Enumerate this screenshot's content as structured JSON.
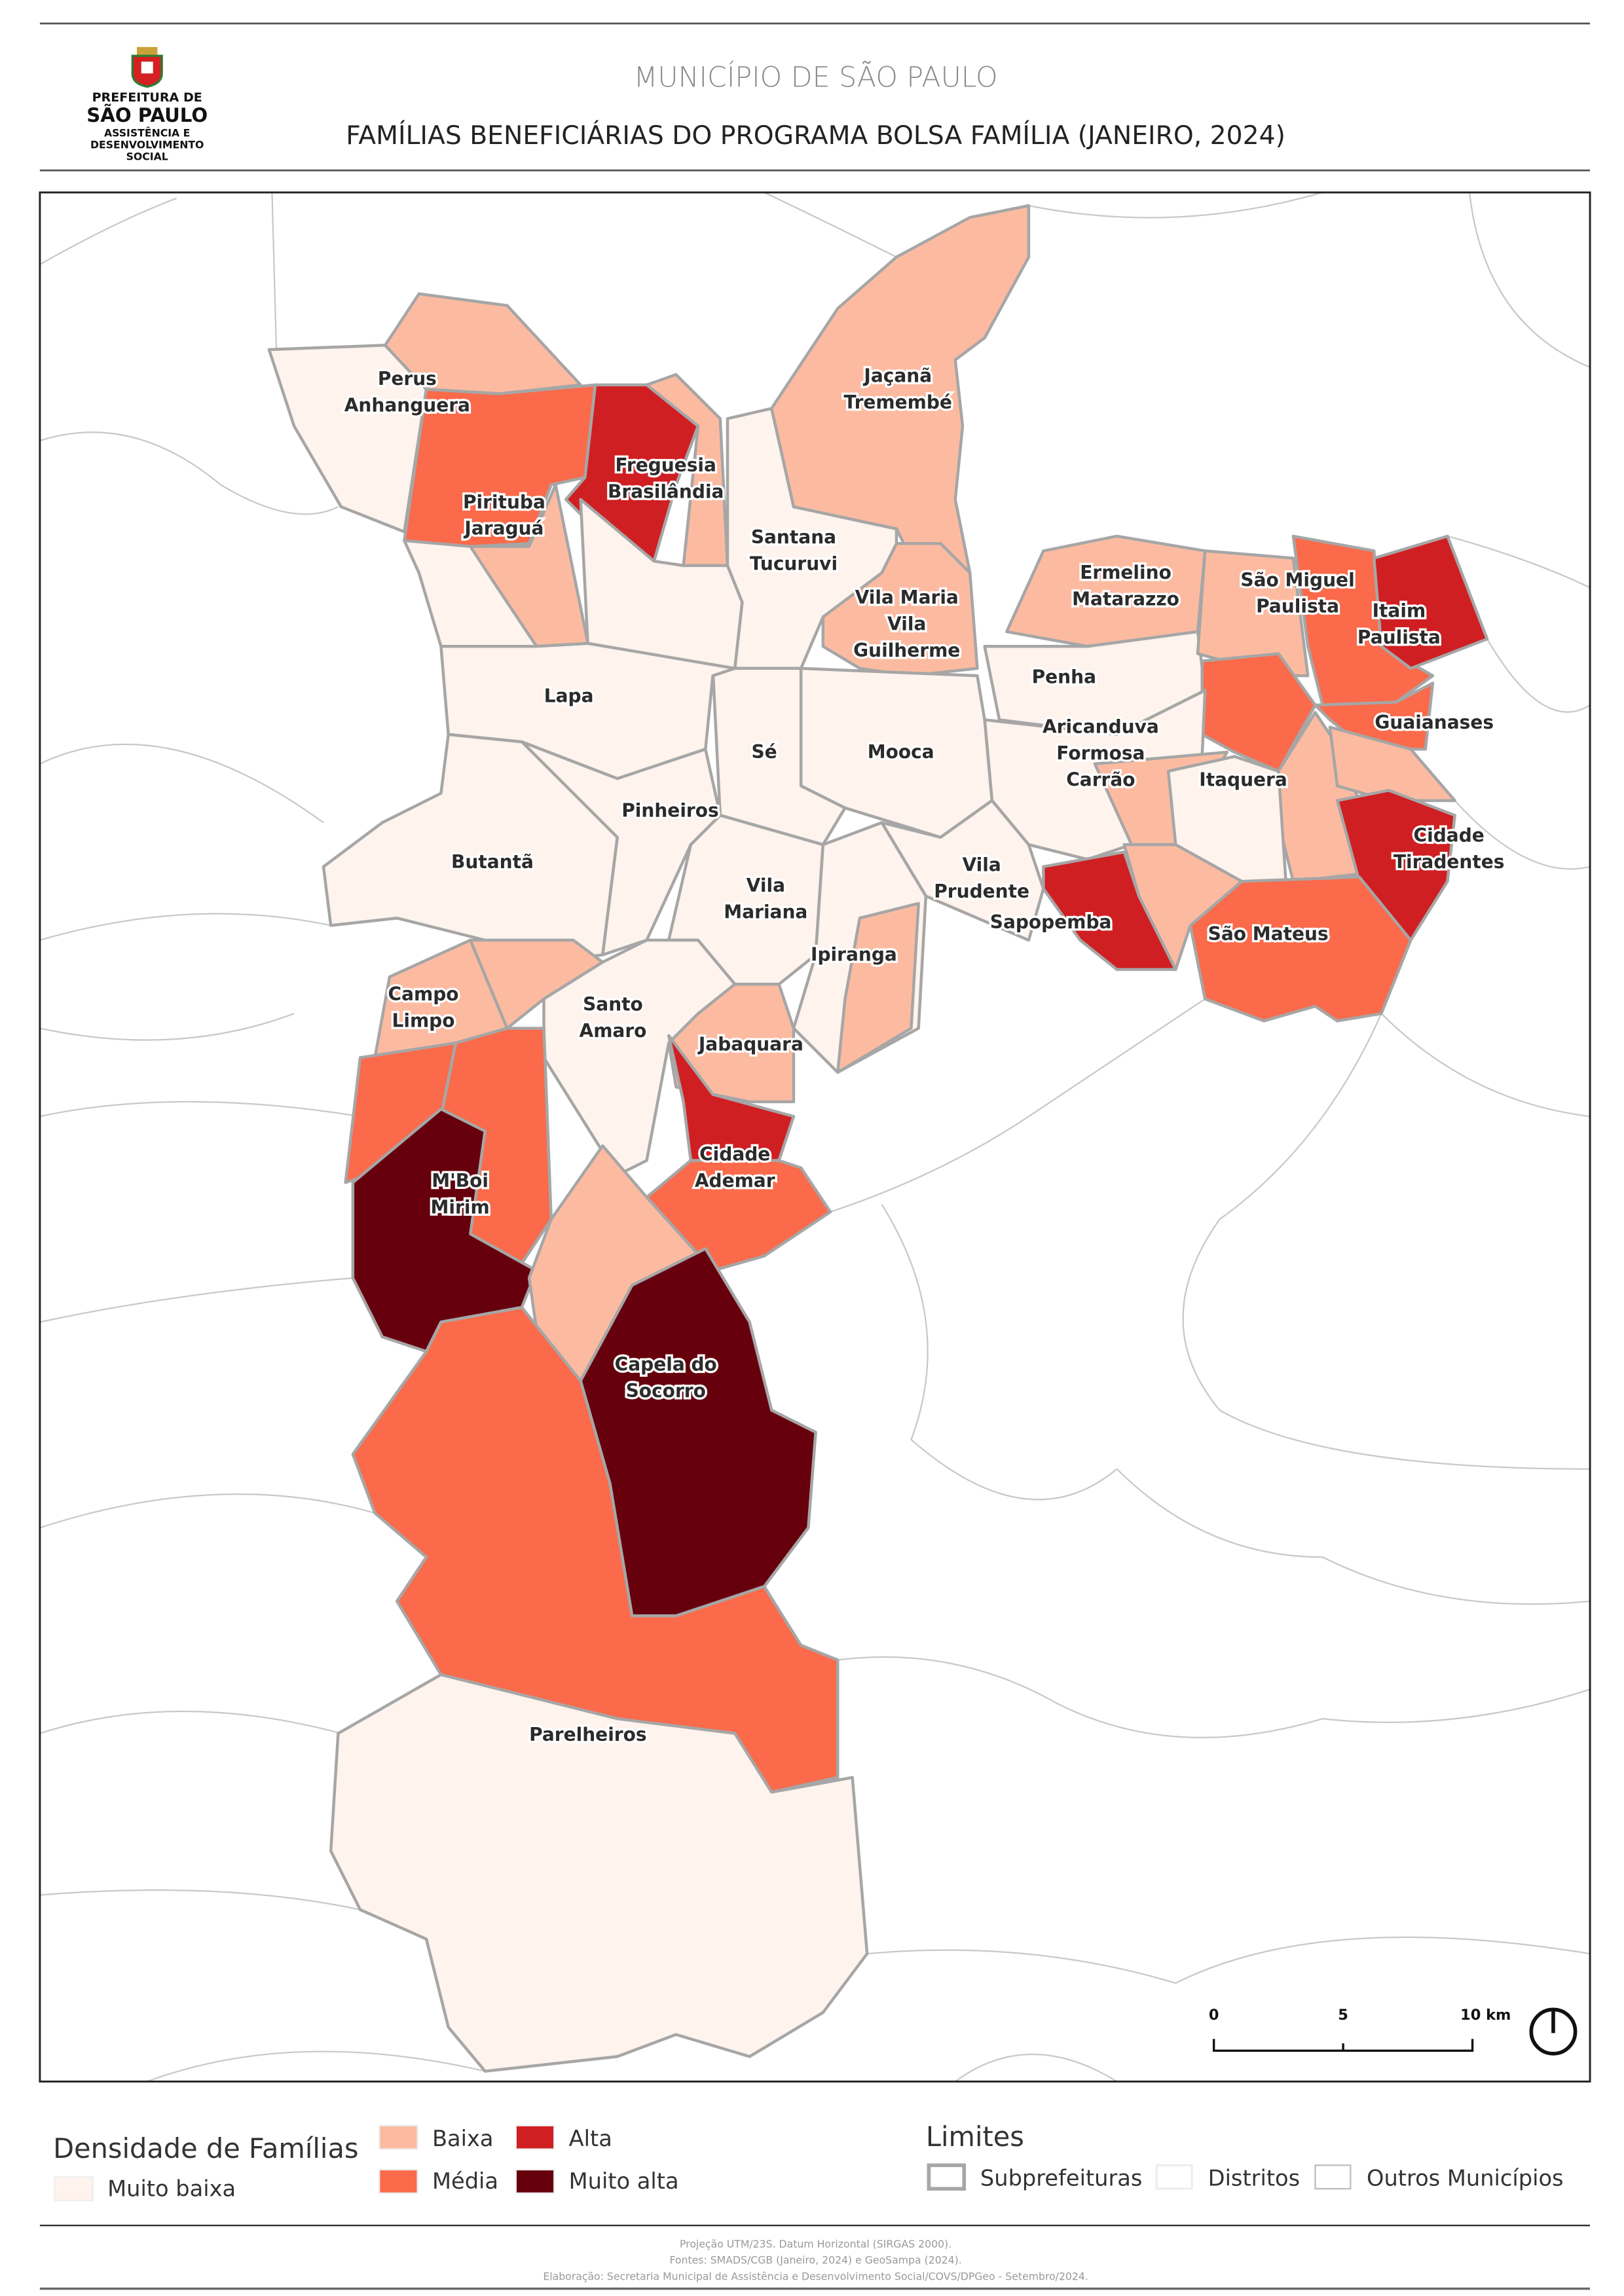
{
  "header": {
    "logo_lines": [
      "PREFEITURA DE",
      "SÃO PAULO",
      "ASSISTÊNCIA E",
      "DESENVOLVIMENTO",
      "SOCIAL"
    ],
    "title": "MUNICÍPIO DE SÃO PAULO",
    "subtitle": "FAMÍLIAS BENEFICIÁRIAS DO PROGRAMA BOLSA FAMÍLIA (JANEIRO, 2024)"
  },
  "colors": {
    "muito_baixa": "#fef3ed",
    "baixa": "#fcbba1",
    "media": "#fb6a4a",
    "alta": "#d01f22",
    "muito_alta": "#67000d",
    "subprefeitura_border": "#a6a6a6",
    "distrito_border": "#f0e6e2",
    "municipio_border": "#c8c8c8"
  },
  "map": {
    "labels": [
      [
        "Perus",
        "Anhanguera"
      ],
      [
        "Pirituba",
        "Jaraguá"
      ],
      [
        "Freguesia",
        "Brasilândia"
      ],
      [
        "Santana",
        "Tucuruvi"
      ],
      [
        "Jaçanã",
        "Tremembé"
      ],
      [
        "Vila Maria",
        "Vila",
        "Guilherme"
      ],
      [
        "Ermelino",
        "Matarazzo"
      ],
      [
        "São Miguel",
        "Paulista"
      ],
      [
        "Itaim",
        "Paulista"
      ],
      [
        "Penha"
      ],
      [
        "Guaianases"
      ],
      [
        "Aricanduva",
        "Formosa",
        "Carrão"
      ],
      [
        "Itaquera"
      ],
      [
        "Cidade",
        "Tiradentes"
      ],
      [
        "Lapa"
      ],
      [
        "Sé"
      ],
      [
        "Mooca"
      ],
      [
        "Pinheiros"
      ],
      [
        "Butantã"
      ],
      [
        "Vila",
        "Prudente"
      ],
      [
        "Sapopemba"
      ],
      [
        "São Mateus"
      ],
      [
        "Vila",
        "Mariana"
      ],
      [
        "Ipiranga"
      ],
      [
        "Campo",
        "Limpo"
      ],
      [
        "Santo",
        "Amaro"
      ],
      [
        "Jabaquara"
      ],
      [
        "Cidade",
        "Ademar"
      ],
      [
        "M'Boi",
        "Mirim"
      ],
      [
        "Capela do",
        "Socorro"
      ],
      [
        "Parelheiros"
      ]
    ],
    "scale_bar": {
      "ticks": [
        "0",
        "5",
        "10 km"
      ]
    },
    "north_arrow": "north-arrow-icon"
  },
  "legend": {
    "title": "Densidade de Famílias",
    "classes": [
      {
        "key": "muito_baixa",
        "label": "Muito baixa"
      },
      {
        "key": "baixa",
        "label": "Baixa"
      },
      {
        "key": "media",
        "label": "Média"
      },
      {
        "key": "alta",
        "label": "Alta"
      },
      {
        "key": "muito_alta",
        "label": "Muito alta"
      }
    ],
    "limits_title": "Limites",
    "limits": [
      {
        "label": "Subprefeituras"
      },
      {
        "label": "Distritos"
      },
      {
        "label": "Outros Municípios"
      }
    ]
  },
  "footer": {
    "lines": [
      "Projeção UTM/23S. Datum Horizontal (SIRGAS 2000).",
      "Fontes: SMADS/CGB (Janeiro, 2024) e GeoSampa (2024).",
      "Elaboração: Secretaria Municipal de Assistência e Desenvolvimento Social/COVS/DPGeo - Setembro/2024."
    ]
  }
}
